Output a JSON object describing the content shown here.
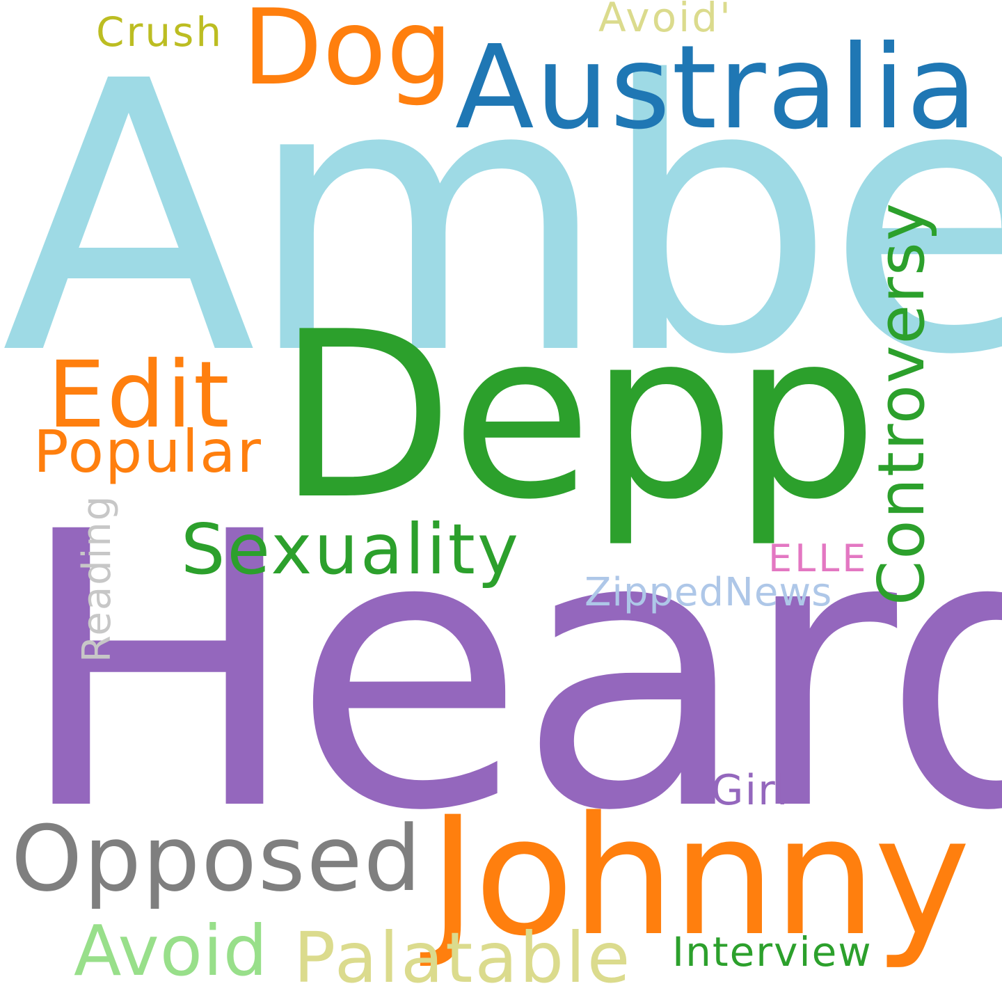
{
  "words": [
    {
      "text": "Amber",
      "color": "#9edae5"
    },
    {
      "text": "Heard",
      "color": "#9467bd"
    },
    {
      "text": "Depp",
      "color": "#2ca02c"
    },
    {
      "text": "Johnny",
      "color": "#ff7f0e"
    },
    {
      "text": "Australia",
      "color": "#1f77b4"
    },
    {
      "text": "Dog",
      "color": "#ff7f0e"
    },
    {
      "text": "Edit",
      "color": "#ff7f0e"
    },
    {
      "text": "Opposed",
      "color": "#7f7f7f"
    },
    {
      "text": "Sexuality",
      "color": "#2ca02c"
    },
    {
      "text": "Popular",
      "color": "#ff7f0e"
    },
    {
      "text": "Palatable",
      "color": "#dbdb8d"
    },
    {
      "text": "Avoid",
      "color": "#98df8a"
    },
    {
      "text": "Controversy",
      "color": "#2ca02c"
    },
    {
      "text": "ZippedNews",
      "color": "#aec7e8"
    },
    {
      "text": "Interview",
      "color": "#2ca02c"
    },
    {
      "text": "ELLE",
      "color": "#e377c2"
    },
    {
      "text": "Girl",
      "color": "#9467bd"
    },
    {
      "text": "Crush",
      "color": "#bcbd22"
    },
    {
      "text": "Avoid'",
      "color": "#dbdb8d"
    },
    {
      "text": "Reading",
      "color": "#c7c7c7"
    }
  ]
}
